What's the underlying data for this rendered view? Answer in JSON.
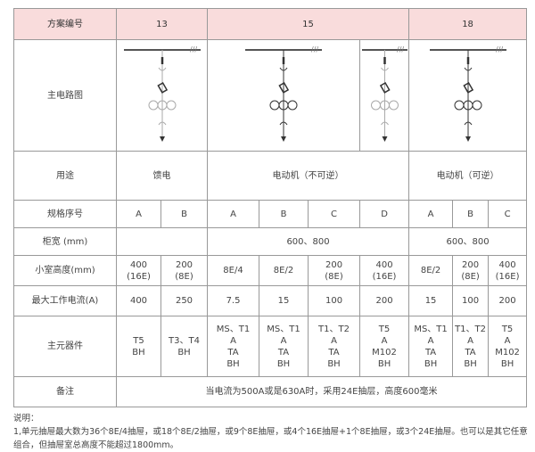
{
  "header": {
    "label": "方案编号",
    "schemes": [
      "13",
      "15",
      "18"
    ]
  },
  "rows": {
    "diagram": "主电路图",
    "usage": {
      "label": "用途",
      "values": [
        "馈电",
        "电动机（不可逆）",
        "电动机（可逆）"
      ]
    },
    "spec": {
      "label": "规格序号",
      "values": [
        "A",
        "B",
        "A",
        "B",
        "C",
        "D",
        "A",
        "B",
        "C"
      ]
    },
    "width": {
      "label": "柜宽 (mm)",
      "values": [
        "600、800",
        "600、800"
      ]
    },
    "height": {
      "label": "小室高度(mm)",
      "values": [
        "400\n(16E)",
        "200\n(8E)",
        "8E/4",
        "8E/2",
        "200\n(8E)",
        "400\n(16E)",
        "8E/2",
        "200\n(8E)",
        "400\n(16E)"
      ]
    },
    "current": {
      "label": "最大工作电流(A)",
      "values": [
        "400",
        "250",
        "7.5",
        "15",
        "100",
        "200",
        "15",
        "100",
        "200"
      ]
    },
    "components": {
      "label": "主元器件",
      "values": [
        "T5\nBH",
        "T3、T4\nBH",
        "MS、T1\nA\nTA\nBH",
        "MS、T1\nA\nTA\nBH",
        "T1、T2\nA\nTA\nBH",
        "T5\nA\nM102\nBH",
        "MS、T1\nA\nTA\nBH",
        "T1、T2\nA\nTA\nBH",
        "T5\nA\nM102\nBH"
      ]
    },
    "remark": {
      "label": "备注",
      "value": "当电流为500A或是630A时，采用24E抽层，高度600毫米"
    }
  },
  "notes": {
    "title": "说明：",
    "line1": "1,单元抽屉最大数为36个8E/4抽屉，或18个8E/2抽屉，或9个8E抽屉，或4个16E抽屉+1个8E抽屉，或3个24E抽屉。也可以是其它任意组合，但抽屉室总高度不能超过1800mm。"
  }
}
